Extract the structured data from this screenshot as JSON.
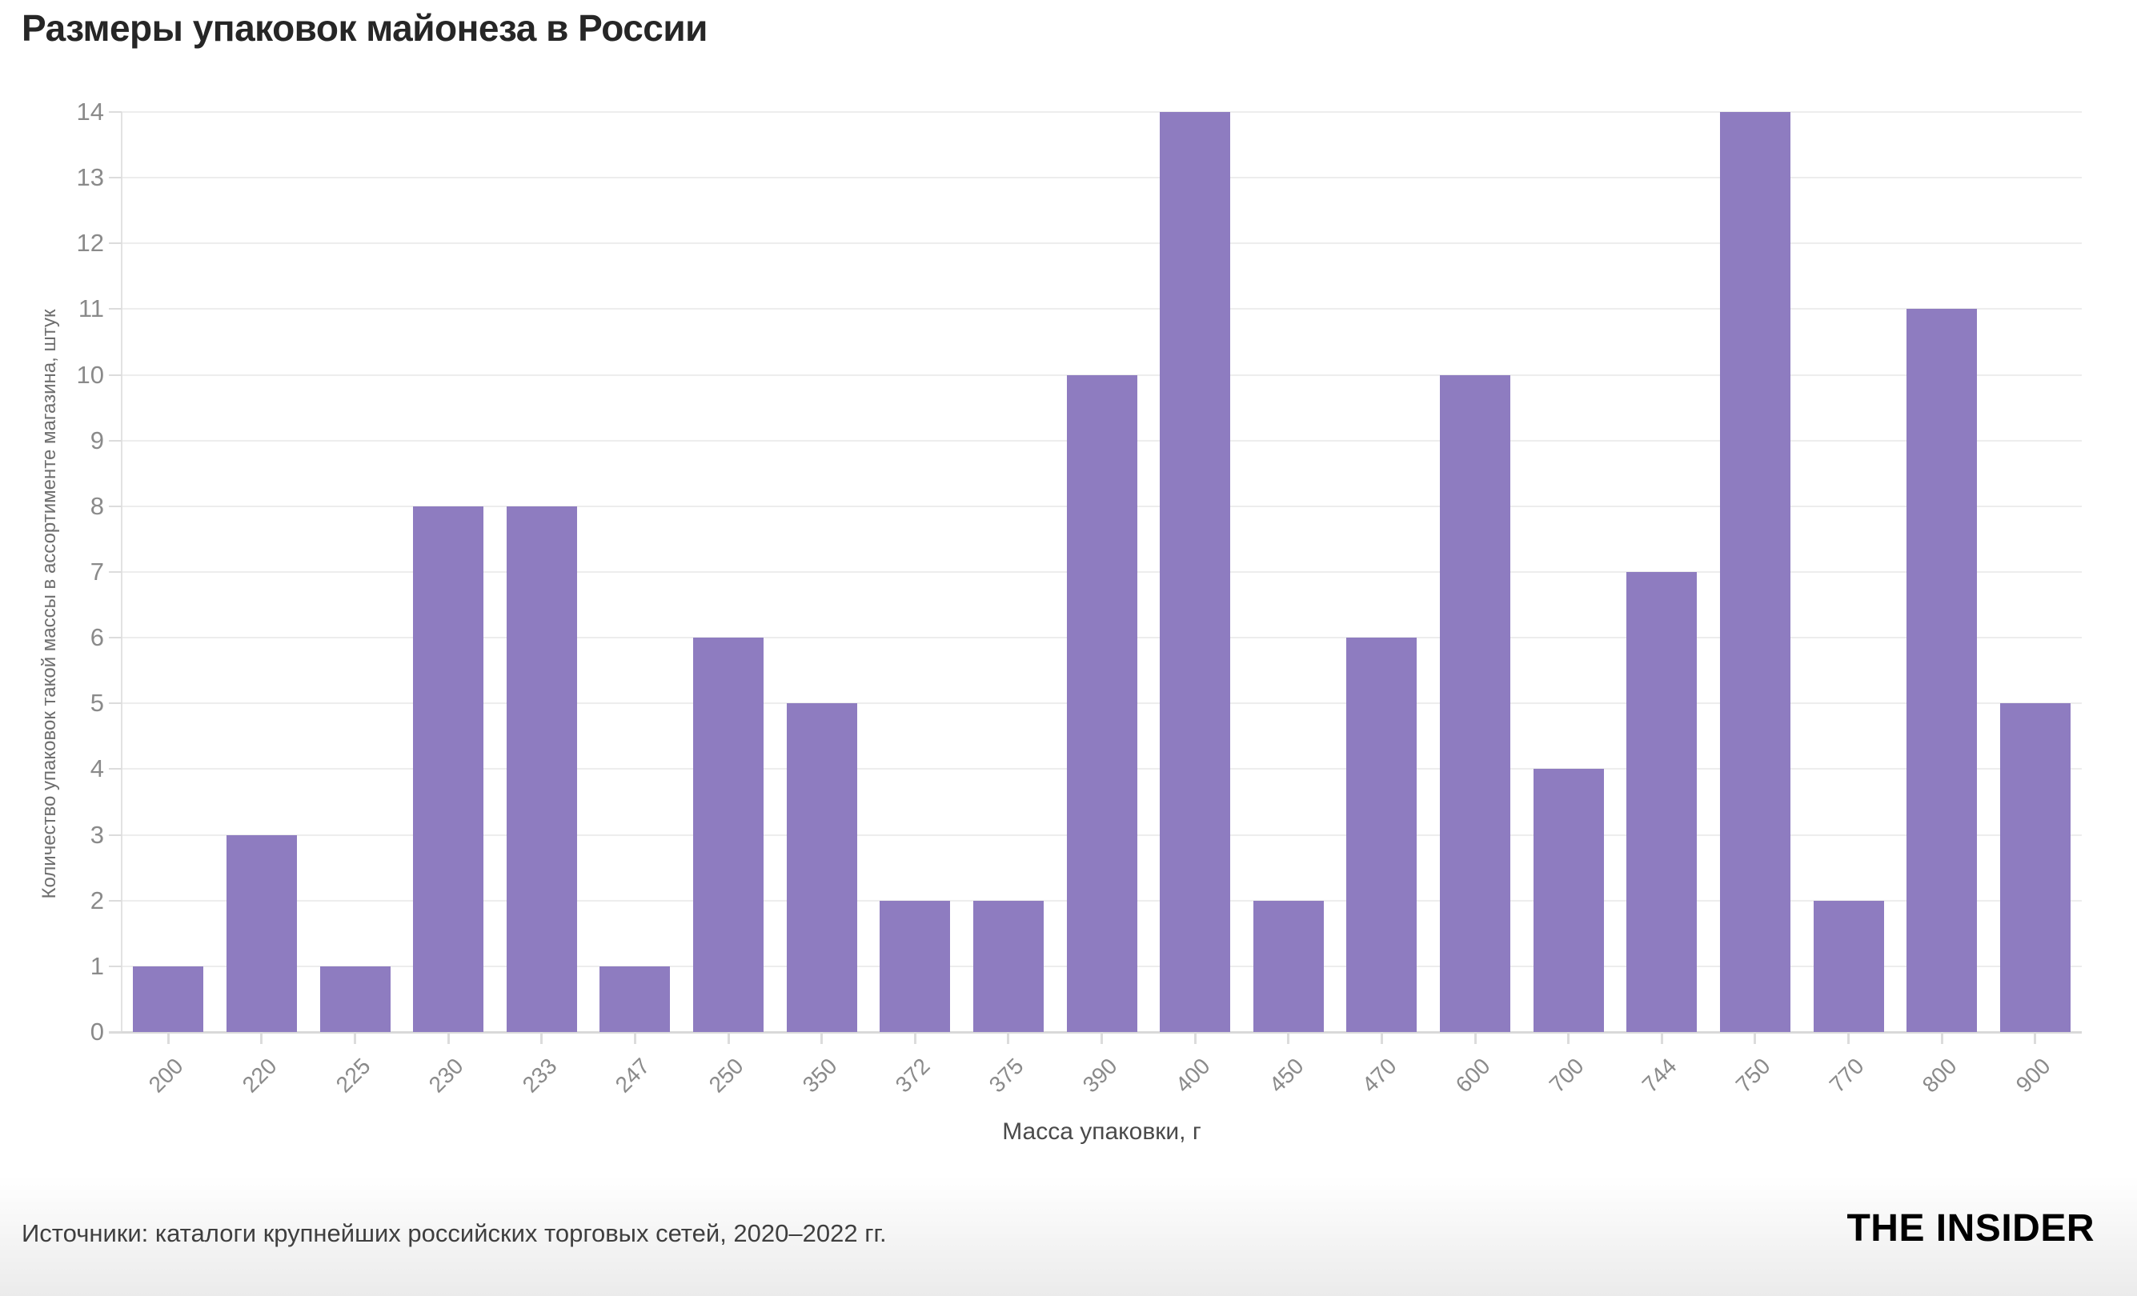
{
  "header": {
    "title": "Размеры упаковок майонеза в России"
  },
  "chart_data": {
    "type": "bar",
    "title": "Размеры упаковок майонеза в России",
    "categories": [
      "200",
      "220",
      "225",
      "230",
      "233",
      "247",
      "250",
      "350",
      "372",
      "375",
      "390",
      "400",
      "450",
      "470",
      "600",
      "700",
      "744",
      "750",
      "770",
      "800",
      "900"
    ],
    "values": [
      1,
      3,
      1,
      8,
      8,
      1,
      6,
      5,
      2,
      2,
      10,
      14,
      2,
      6,
      10,
      4,
      7,
      14,
      2,
      11,
      5
    ],
    "xlabel": "Масса упаковки, г",
    "ylabel": "Количество упаковок такой массы в ассортименте магазина, штук",
    "ylim": [
      0,
      14
    ],
    "ytick_step": 1,
    "yticks": [
      0,
      1,
      2,
      3,
      4,
      5,
      6,
      7,
      8,
      9,
      10,
      11,
      12,
      13,
      14
    ],
    "grid": true,
    "legend": "none",
    "bar_color": "#8e7cc0"
  },
  "colors": {
    "bar": "#8e7cc0",
    "grid": "#ededed",
    "axis": "#d9d9d9",
    "tick_label": "#8a8a8a",
    "title": "#262626",
    "axis_title": "#6e6e6e",
    "source_text": "#3f3f3f",
    "logo": "#000000"
  },
  "footer": {
    "source": "Источники: каталоги крупнейших российских торговых сетей, 2020–2022 гг.",
    "logo": "THE INSIDER"
  }
}
